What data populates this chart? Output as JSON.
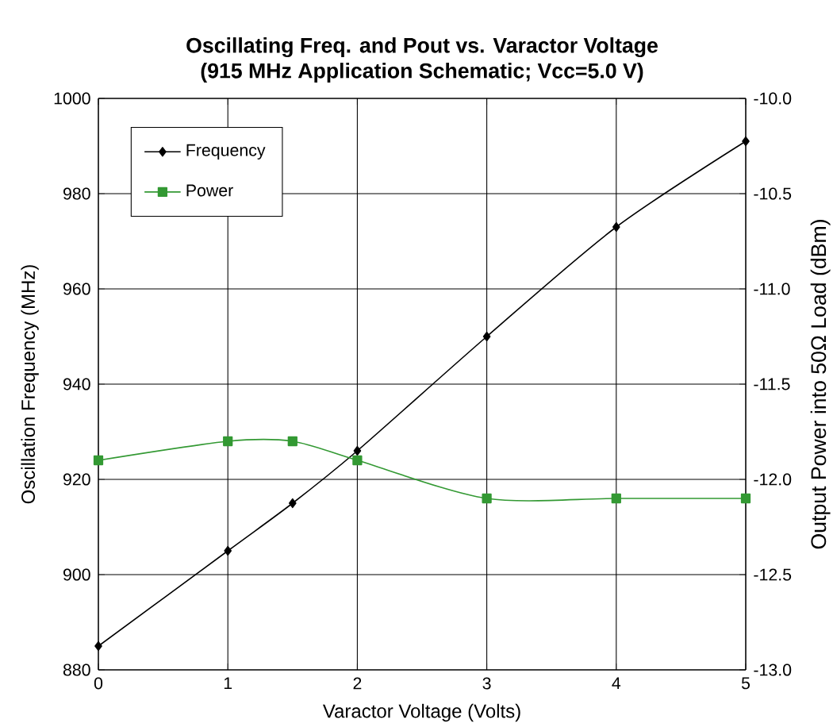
{
  "chart_data": {
    "type": "line",
    "title": "Oscillating Freq. and Pout vs. Varactor Voltage",
    "subtitle": "(915 MHz Application Schematic; Vcc=5.0 V)",
    "xlabel": "Varactor Voltage (Volts)",
    "ylabel": "Oscillation Frequency (MHz)",
    "y2label": "Output Power into 50Ω Load (dBm)",
    "x": [
      0,
      1,
      1.5,
      2,
      3,
      4,
      5
    ],
    "series": [
      {
        "name": "Frequency",
        "color": "#000000",
        "marker": "diamond",
        "values": [
          885,
          905,
          915,
          926,
          950,
          973,
          991
        ]
      },
      {
        "name": "Power",
        "color": "#339933",
        "marker": "square",
        "axis": "y2",
        "values": [
          -11.9,
          -11.8,
          -11.8,
          -11.9,
          -12.1,
          -12.1,
          -12.1
        ]
      }
    ],
    "xlim": [
      0,
      5
    ],
    "xticks": [
      0,
      1,
      2,
      3,
      4,
      5
    ],
    "ylim": [
      880,
      1000
    ],
    "yticks": [
      880,
      900,
      920,
      940,
      960,
      980,
      1000
    ],
    "y2lim": [
      -13,
      -10
    ],
    "y2ticks": [
      {
        "value": -13,
        "label": "-13.0"
      },
      {
        "value": -12.5,
        "label": "-12.5"
      },
      {
        "value": -12,
        "label": "-12.0"
      },
      {
        "value": -11.5,
        "label": "-11.5"
      },
      {
        "value": -11,
        "label": "-11.0"
      },
      {
        "value": -10.5,
        "label": "-10.5"
      },
      {
        "value": -10,
        "label": "-10.0"
      }
    ],
    "grid": true,
    "legend": "top left",
    "line_style": "solid"
  }
}
